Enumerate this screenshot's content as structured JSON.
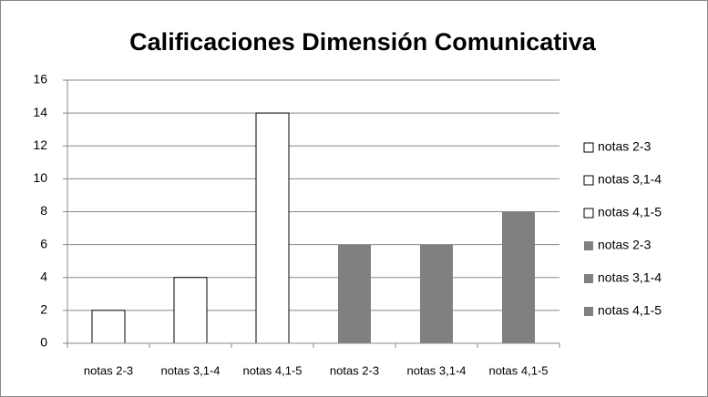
{
  "chart_data": {
    "type": "bar",
    "title": "Calificaciones  Dimensión Comunicativa",
    "categories": [
      "notas 2-3",
      "notas 3,1-4",
      "notas 4,1-5",
      "notas 2-3",
      "notas 3,1-4",
      "notas 4,1-5"
    ],
    "values": [
      2,
      4,
      14,
      6,
      6,
      8
    ],
    "colors": [
      "#ffffff",
      "#ffffff",
      "#ffffff",
      "#808080",
      "#808080",
      "#808080"
    ],
    "ylim": [
      0,
      16
    ],
    "yticks": [
      0,
      2,
      4,
      6,
      8,
      10,
      12,
      14,
      16
    ],
    "grid": true,
    "legend": "right"
  }
}
